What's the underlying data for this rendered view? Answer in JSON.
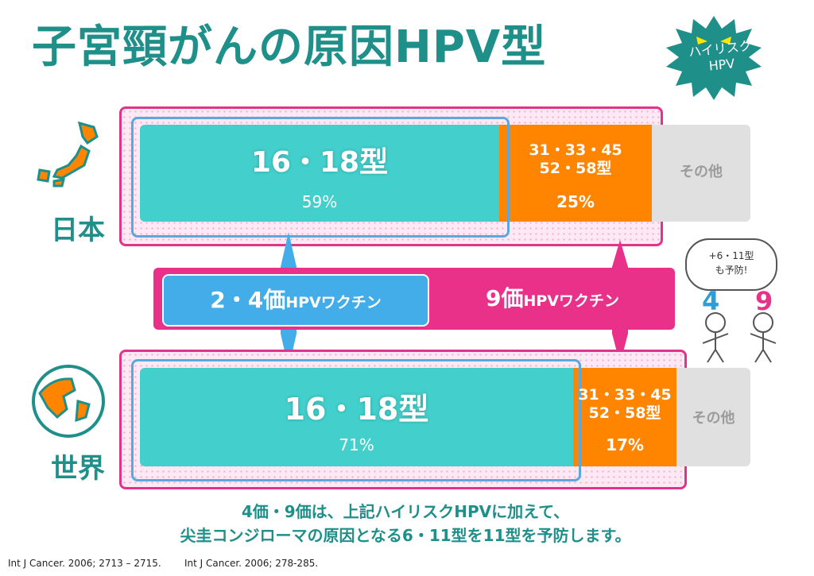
{
  "title": "子宮頸がんの原因HPV型",
  "badge": {
    "line1": "ハイリスク",
    "line2": "HPV"
  },
  "regions": {
    "japan": "日本",
    "world": "世界"
  },
  "chart_data": [
    {
      "type": "bar",
      "orientation": "horizontal-stacked-100",
      "category": "日本",
      "series": [
        {
          "name": "16・18型",
          "value": 59,
          "label": "59%"
        },
        {
          "name": "31・33・45 52・58型",
          "name_lines": [
            "31・33・45",
            "52・58型"
          ],
          "value": 25,
          "label": "25%"
        },
        {
          "name": "その他",
          "value": 16
        }
      ]
    },
    {
      "type": "bar",
      "orientation": "horizontal-stacked-100",
      "category": "世界",
      "series": [
        {
          "name": "16・18型",
          "value": 71,
          "label": "71%"
        },
        {
          "name": "31・33・45 52・58型",
          "name_lines": [
            "31・33・45",
            "52・58型"
          ],
          "value": 17,
          "label": "17%"
        },
        {
          "name": "その他",
          "value": 12
        }
      ]
    }
  ],
  "vaccines": {
    "bivalent": {
      "num": "2・4価",
      "suffix": "HPVワクチン"
    },
    "nonavalent": {
      "num": "9価",
      "suffix": "HPVワクチン"
    }
  },
  "characters": {
    "bubble_line1": "+6・11型",
    "bubble_line2": "も予防!",
    "num4": "4",
    "num9": "9"
  },
  "note": {
    "line1": "4価・9価は、上記ハイリスクHPVに加えて、",
    "line2": "尖圭コンジローマの原因となる6・11型を11型を予防します。"
  },
  "citations": [
    "Int J Cancer. 2006; 2713 – 2715.",
    "Int J Cancer. 2006; 278-285."
  ],
  "colors": {
    "teal": "#43d0cd",
    "orange": "#ff8400",
    "grey": "#e0e0e0",
    "pink": "#e9318a",
    "blue": "#42ade9",
    "title": "#1f8f8a"
  }
}
